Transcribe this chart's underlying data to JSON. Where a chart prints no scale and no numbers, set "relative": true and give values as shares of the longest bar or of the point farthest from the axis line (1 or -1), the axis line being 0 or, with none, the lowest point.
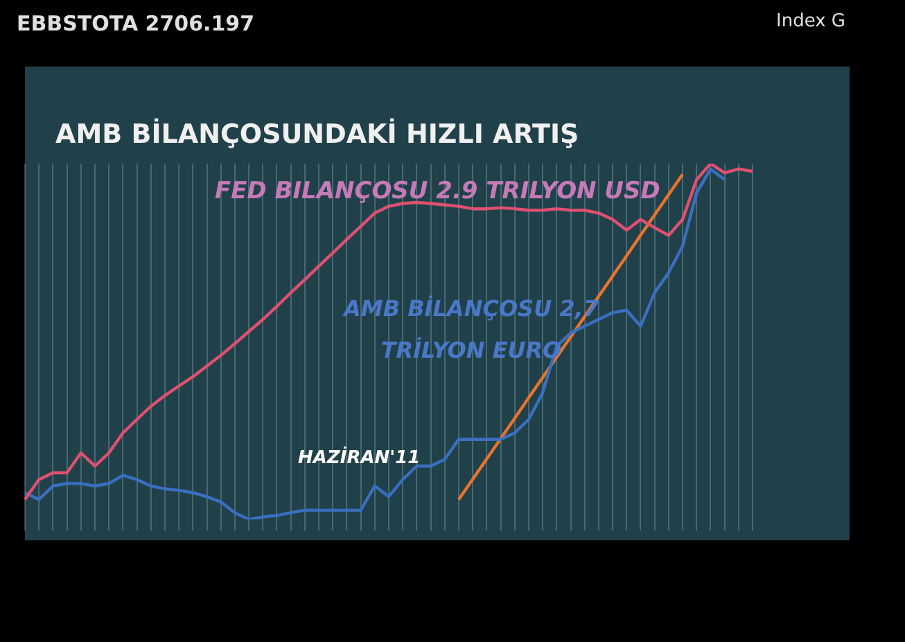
{
  "chart_data": {
    "type": "line",
    "title": "AMB BİLANÇOSUNDAKİ HIZLI ARTIŞ",
    "annotations": [
      "EBBSTOTA 2706.197",
      "Index G",
      "FED BILANÇOSU 2.9 TRILYON USD",
      "AMB BİLANÇOSU 2,7 TRİLYON EURO",
      "HAZİRAN'11"
    ],
    "relative": true,
    "grid": "x",
    "legend": false,
    "marker": "none",
    "line_style": "solid",
    "categories": [
      null,
      null,
      null,
      null,
      null,
      null,
      null,
      null,
      null,
      null,
      null,
      null,
      null,
      null,
      null,
      null,
      null,
      null,
      null,
      null,
      null,
      null,
      null,
      null,
      null,
      null,
      null,
      null,
      null,
      null,
      null,
      null,
      null,
      null,
      null,
      null,
      null,
      null,
      null,
      null,
      null,
      null,
      null,
      null,
      null,
      null,
      null,
      null,
      null,
      null,
      null,
      null,
      null
    ],
    "series": [
      {
        "color": "#e05070",
        "values": [
          0.056,
          0.112,
          0.131,
          0.131,
          0.187,
          0.15,
          0.187,
          0.243,
          0.281,
          0.318,
          0.348,
          0.375,
          0.401,
          0.431,
          0.461,
          0.494,
          0.528,
          0.562,
          0.599,
          0.637,
          0.674,
          0.712,
          0.749,
          0.787,
          0.824,
          0.861,
          0.88,
          0.888,
          0.891,
          0.888,
          0.884,
          0.88,
          0.873,
          0.873,
          0.876,
          0.873,
          0.869,
          0.869,
          0.873,
          0.869,
          0.869,
          0.861,
          0.843,
          0.813,
          0.843,
          0.82,
          0.798,
          0.843,
          0.955,
          1,
          0.974,
          0.985,
          0.978
        ]
      },
      {
        "color": "#3a6fc0",
        "values": [
          0.075,
          0.056,
          0.094,
          0.101,
          0.101,
          0.094,
          0.101,
          0.124,
          0.112,
          0.094,
          0.086,
          0.082,
          0.075,
          0.064,
          0.049,
          0.019,
          0,
          0.007,
          0.011,
          0.019,
          0.026,
          0.026,
          0.026,
          0.026,
          0.026,
          0.094,
          0.064,
          0.112,
          0.15,
          0.15,
          0.169,
          0.225,
          0.225,
          0.225,
          0.225,
          0.243,
          0.281,
          0.356,
          0.487,
          0.524,
          0.543,
          0.562,
          0.581,
          0.588,
          0.543,
          0.637,
          0.693,
          0.768,
          0.918,
          0.985,
          0.955,
          null,
          null
        ]
      },
      {
        "type": "line",
        "color": "#e8742a",
        "values": [
          null,
          null,
          null,
          null,
          null,
          null,
          null,
          null,
          null,
          null,
          null,
          null,
          null,
          null,
          null,
          null,
          null,
          null,
          null,
          null,
          null,
          null,
          null,
          null,
          null,
          null,
          null,
          null,
          null,
          null,
          null,
          0.056,
          0.113,
          0.17,
          0.227,
          0.284,
          0.342,
          0.399,
          0.456,
          0.513,
          0.57,
          0.627,
          0.684,
          0.741,
          0.799,
          0.856,
          0.913,
          0.97,
          null,
          null,
          null,
          null,
          null
        ]
      }
    ]
  }
}
